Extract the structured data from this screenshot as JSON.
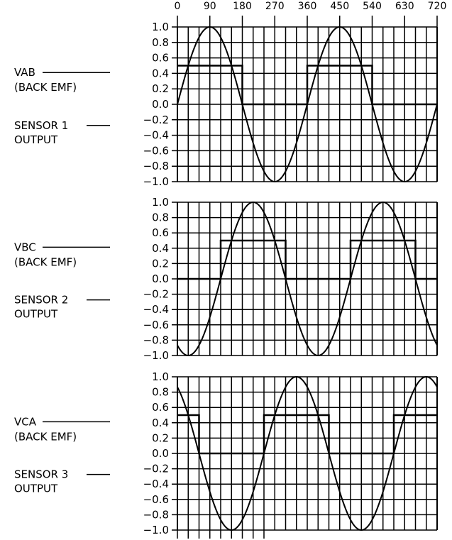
{
  "chart_data": {
    "type": "line",
    "x_axis": {
      "ticks": [
        "0",
        "90",
        "180",
        "270",
        "360",
        "450",
        "540",
        "630",
        "720"
      ],
      "range": [
        0,
        720
      ],
      "grid_step": 30
    },
    "y_axis": {
      "ticks": [
        "1.0",
        "0.8",
        "0.6",
        "0.4",
        "0.2",
        "0.0",
        "−0.2",
        "−0.4",
        "−0.6",
        "−0.8",
        "−1.0"
      ],
      "range": [
        -1.0,
        1.0
      ]
    },
    "grid": true,
    "panels": [
      {
        "emf_label": "VAB",
        "emf_sub": "(BACK EMF)",
        "sensor_label": "SENSOR 1",
        "sensor_sub": "OUTPUT",
        "series": [
          {
            "kind": "back_emf",
            "phase_deg": 0
          },
          {
            "kind": "sensor_output",
            "high": 0.5,
            "low": 0.0,
            "high_intervals": [
              [
                0,
                180
              ],
              [
                360,
                540
              ]
            ]
          }
        ]
      },
      {
        "emf_label": "VBC",
        "emf_sub": "(BACK EMF)",
        "sensor_label": "SENSOR 2",
        "sensor_sub": "OUTPUT",
        "series": [
          {
            "kind": "back_emf",
            "phase_deg": 120
          },
          {
            "kind": "sensor_output",
            "high": 0.5,
            "low": 0.0,
            "high_intervals": [
              [
                120,
                300
              ],
              [
                480,
                660
              ]
            ]
          }
        ]
      },
      {
        "emf_label": "VCA",
        "emf_sub": "(BACK EMF)",
        "sensor_label": "SENSOR 3",
        "sensor_sub": "OUTPUT",
        "series": [
          {
            "kind": "back_emf",
            "phase_deg": 240
          },
          {
            "kind": "sensor_output",
            "high": 0.5,
            "low": 0.0,
            "high_intervals": [
              [
                0,
                60
              ],
              [
                240,
                420
              ],
              [
                600,
                720
              ]
            ]
          }
        ]
      }
    ]
  }
}
